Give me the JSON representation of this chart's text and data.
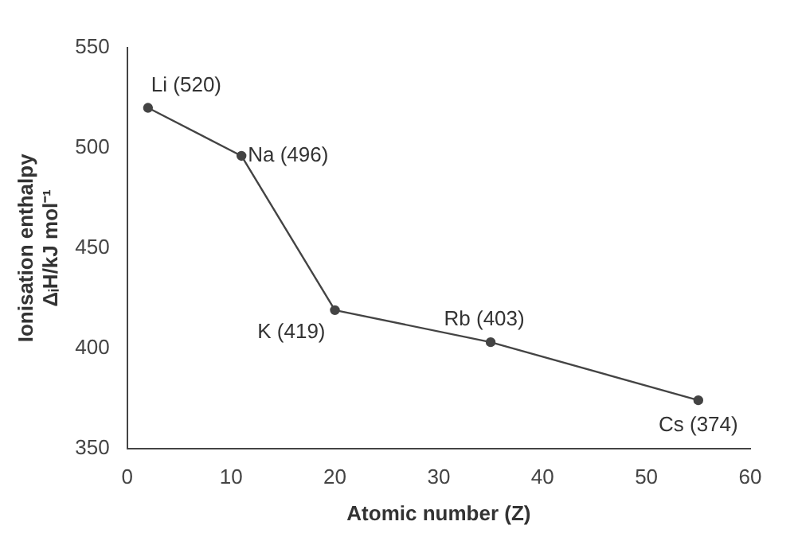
{
  "chart_data": {
    "type": "line",
    "xlabel": "Atomic number (Z)",
    "ylabel": "Ionisation enthalpy\nΔᵢH/kJ mol⁻¹",
    "x": [
      2,
      11,
      20,
      35,
      55
    ],
    "series": [
      {
        "color": "#444444",
        "values": [
          520,
          496,
          419,
          403,
          374
        ]
      }
    ],
    "xlim": [
      0,
      60
    ],
    "xticks": [
      0,
      10,
      20,
      30,
      40,
      50,
      60
    ],
    "ylim": [
      350,
      550
    ],
    "yticks": [
      350,
      400,
      450,
      500,
      550
    ],
    "grid": false,
    "legend": false,
    "marker": "circle",
    "line_style": "solid",
    "annotations": [
      {
        "text": "Li (520)",
        "x": 2,
        "y": 520
      },
      {
        "text": "Na (496)",
        "x": 11,
        "y": 496
      },
      {
        "text": "K (419)",
        "x": 20,
        "y": 419
      },
      {
        "text": "Rb (403)",
        "x": 35,
        "y": 403
      },
      {
        "text": "Cs (374)",
        "x": 55,
        "y": 374
      }
    ]
  }
}
